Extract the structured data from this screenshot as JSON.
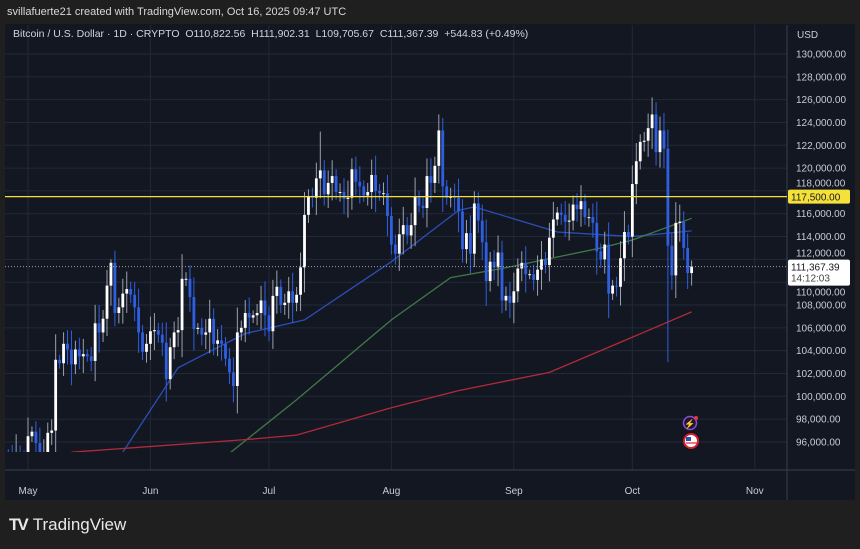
{
  "header": {
    "credit": "svillafuerte21 created with TradingView.com, Oct 16, 2025 09:47 UTC"
  },
  "legend": {
    "symbol": "Bitcoin / U.S. Dollar · 1D · CRYPTO",
    "open": "O110,822.56",
    "high": "H111,902.31",
    "low": "L109,705.67",
    "close": "C111,367.39",
    "change": "+544.83 (+0.49%)"
  },
  "price_axis": {
    "currency": "USD",
    "ticks": [
      "130,000.00",
      "128,000.00",
      "126,000.00",
      "124,000.00",
      "122,000.00",
      "120,000.00",
      "118,000.00",
      "116,000.00",
      "114,000.00",
      "112,000.00",
      "110,000.00",
      "108,000.00",
      "106,000.00",
      "104,000.00",
      "102,000.00",
      "100,000.00",
      "98,000.00",
      "96,000.00"
    ]
  },
  "time_axis": {
    "ticks": [
      "May",
      "Jun",
      "Jul",
      "Aug",
      "Sep",
      "Oct",
      "Nov"
    ]
  },
  "footer": {
    "brand": "TradingView"
  },
  "icons": [
    "lightning-event-icon",
    "us-flag-event-icon"
  ],
  "colors": {
    "up": "#ffffff",
    "down": "#2f5fe0",
    "level": "#f5e13a",
    "ma_blue": "#2a4fb5",
    "ma_green": "#3f7a45",
    "ma_red": "#b02a3a"
  },
  "chart_data": {
    "type": "candlestick",
    "start_date": "2025-04-25",
    "first_open": 93900,
    "ylim": [
      95000,
      131000
    ],
    "xlim": [
      "2025-04-24",
      "2025-11-15"
    ],
    "grid": true,
    "closes": [
      94600,
      94500,
      93700,
      95000,
      94300,
      94200,
      96500,
      96900,
      95900,
      94300,
      94700,
      96800,
      97000,
      103200,
      102900,
      104600,
      104100,
      102800,
      104100,
      103500,
      103700,
      103500,
      103100,
      106400,
      105600,
      106800,
      109700,
      111700,
      107300,
      107800,
      109000,
      109400,
      108900,
      107800,
      105600,
      103900,
      104600,
      105700,
      105800,
      105400,
      104700,
      101500,
      104300,
      105600,
      105800,
      110300,
      110300,
      108700,
      105900,
      106000,
      105400,
      105600,
      106800,
      104600,
      104900,
      104600,
      103300,
      102100,
      100900,
      105600,
      106000,
      107300,
      106900,
      107100,
      107300,
      108400,
      107100,
      105700,
      108800,
      109600,
      108000,
      108200,
      109200,
      108200,
      108900,
      111300,
      115900,
      117500,
      117400,
      119100,
      119800,
      117700,
      118700,
      119300,
      117900,
      117900,
      117300,
      117400,
      119900,
      118800,
      118400,
      117600,
      117900,
      119400,
      118000,
      117800,
      117800,
      115800,
      113300,
      112500,
      114200,
      115000,
      114100,
      115000,
      117500,
      116700,
      116500,
      119300,
      118700,
      120200,
      123300,
      118400,
      117400,
      117500,
      117400,
      116200,
      112900,
      114300,
      112500,
      116900,
      115400,
      113500,
      110100,
      111800,
      111300,
      112600,
      108400,
      108800,
      108200,
      109200,
      111200,
      111700,
      110700,
      110700,
      110200,
      111100,
      112000,
      111500,
      113900,
      115500,
      116100,
      115900,
      115300,
      115400,
      116800,
      116400,
      117100,
      115700,
      115700,
      115200,
      112700,
      112000,
      113300,
      109000,
      109700,
      109600,
      112100,
      114400,
      114000,
      118600,
      120600,
      122300,
      122400,
      123500,
      124700,
      121400,
      123300,
      121700,
      113200,
      110600,
      115200,
      115300,
      113000,
      110800,
      111367.39
    ],
    "notable_extremes": [
      {
        "date": "2025-05-22",
        "high": 112000
      },
      {
        "date": "2025-07-14",
        "high": 123200
      },
      {
        "date": "2025-08-14",
        "high": 124400
      },
      {
        "date": "2025-10-06",
        "high": 126200
      },
      {
        "date": "2025-10-10",
        "low": 103000
      },
      {
        "date": "2025-10-16",
        "high": 111902.31,
        "low": 109705.67
      }
    ],
    "moving_averages": [
      {
        "color": "#2a4fb5",
        "points": [
          [
            "2025-05-25",
            95100
          ],
          [
            "2025-06-08",
            102500
          ],
          [
            "2025-06-17",
            104100
          ],
          [
            "2025-06-25",
            105500
          ],
          [
            "2025-07-10",
            106700
          ],
          [
            "2025-08-01",
            111800
          ],
          [
            "2025-08-18",
            116300
          ],
          [
            "2025-08-22",
            116600
          ],
          [
            "2025-09-12",
            114400
          ],
          [
            "2025-10-01",
            114000
          ],
          [
            "2025-10-16",
            114500
          ]
        ]
      },
      {
        "color": "#3f7a45",
        "points": [
          [
            "2025-06-21",
            95000
          ],
          [
            "2025-07-08",
            99700
          ],
          [
            "2025-08-01",
            106700
          ],
          [
            "2025-08-16",
            110400
          ],
          [
            "2025-08-29",
            111200
          ],
          [
            "2025-09-23",
            113000
          ],
          [
            "2025-10-01",
            113700
          ],
          [
            "2025-10-16",
            115600
          ]
        ]
      },
      {
        "color": "#b02a3a",
        "points": [
          [
            "2025-05-12",
            95100
          ],
          [
            "2025-06-25",
            96200
          ],
          [
            "2025-07-08",
            96600
          ],
          [
            "2025-08-01",
            99000
          ],
          [
            "2025-08-18",
            100500
          ],
          [
            "2025-09-10",
            102100
          ],
          [
            "2025-09-23",
            104000
          ],
          [
            "2025-10-16",
            107400
          ]
        ]
      }
    ],
    "horizontal_levels": [
      {
        "value": 117500,
        "label": "117,500.00"
      }
    ],
    "last_price": {
      "value": 111367.39,
      "label": "111,367.39",
      "countdown": "14:12:03"
    }
  }
}
